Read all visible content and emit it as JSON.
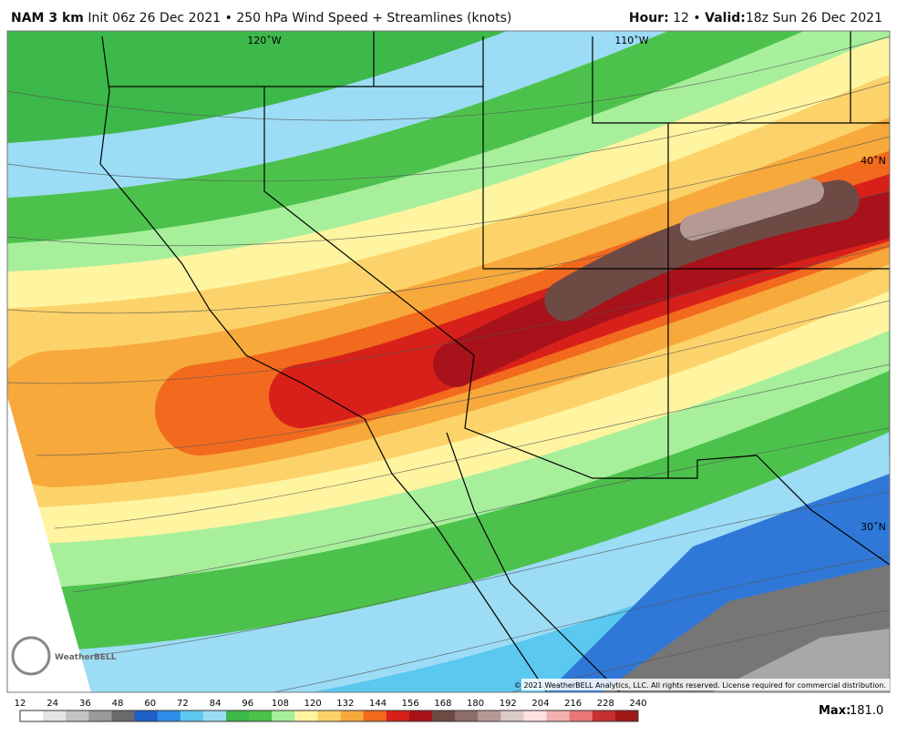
{
  "header": {
    "model": "NAM 3 km",
    "description": "Init 06z 26 Dec 2021 • 250 hPa Wind Speed + Streamlines (knots)",
    "hour_label": "Hour:",
    "hour": "12",
    "separator": "•",
    "valid_label": "Valid:",
    "valid": "18z Sun 26 Dec 2021"
  },
  "map": {
    "labels": [
      "120˚W",
      "110˚W",
      "40˚N",
      "30˚N"
    ],
    "copyright": "© 2021 WeatherBELL Analytics, LLC. All rights reserved. License required for commercial distribution.",
    "logo": "WeatherBELL"
  },
  "colorbar": {
    "ticks": [
      12,
      24,
      36,
      48,
      60,
      72,
      84,
      96,
      108,
      120,
      132,
      144,
      156,
      168,
      180,
      192,
      204,
      216,
      228,
      240
    ]
  },
  "footer": {
    "max_label": "Max:",
    "max": "181.0"
  }
}
